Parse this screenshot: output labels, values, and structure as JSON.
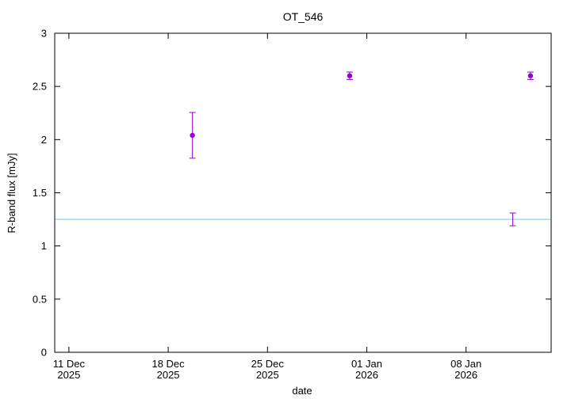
{
  "chart_data": {
    "type": "scatter",
    "title": "OT_546",
    "xlabel": "date",
    "ylabel": "R-band flux [mJy]",
    "ylim": [
      0,
      3
    ],
    "xlim": [
      "2025-12-10",
      "2026-01-14"
    ],
    "yticks": [
      {
        "value": 0,
        "label": "0"
      },
      {
        "value": 0.5,
        "label": "0.5"
      },
      {
        "value": 1,
        "label": "1"
      },
      {
        "value": 1.5,
        "label": "1.5"
      },
      {
        "value": 2,
        "label": "2"
      },
      {
        "value": 2.5,
        "label": "2.5"
      },
      {
        "value": 3,
        "label": "3"
      }
    ],
    "xticks": [
      {
        "date": "2025-12-11",
        "line1": "11 Dec",
        "line2": "2025"
      },
      {
        "date": "2025-12-18",
        "line1": "18 Dec",
        "line2": "2025"
      },
      {
        "date": "2025-12-25",
        "line1": "25 Dec",
        "line2": "2025"
      },
      {
        "date": "2026-01-01",
        "line1": "01 Jan",
        "line2": "2026"
      },
      {
        "date": "2026-01-08",
        "line1": "08 Jan",
        "line2": "2026"
      }
    ],
    "series": [
      {
        "color": "#9400d3",
        "points": [
          {
            "x": "2025-12-19T17:00",
            "y": 2.04,
            "err": 0.215
          },
          {
            "x": "2025-12-30T19:00",
            "y": 2.6,
            "err": 0.035
          },
          {
            "x": "2026-01-12T13:00",
            "y": 2.6,
            "err": 0.035
          }
        ]
      },
      {
        "color": "#9400d3",
        "style": "errorbar-only",
        "points": [
          {
            "x": "2026-01-11T07:00",
            "y": 1.25,
            "err": 0.06
          }
        ]
      }
    ],
    "reference_line": {
      "y": 1.25,
      "color": "#87ceeb"
    },
    "grid": false
  }
}
